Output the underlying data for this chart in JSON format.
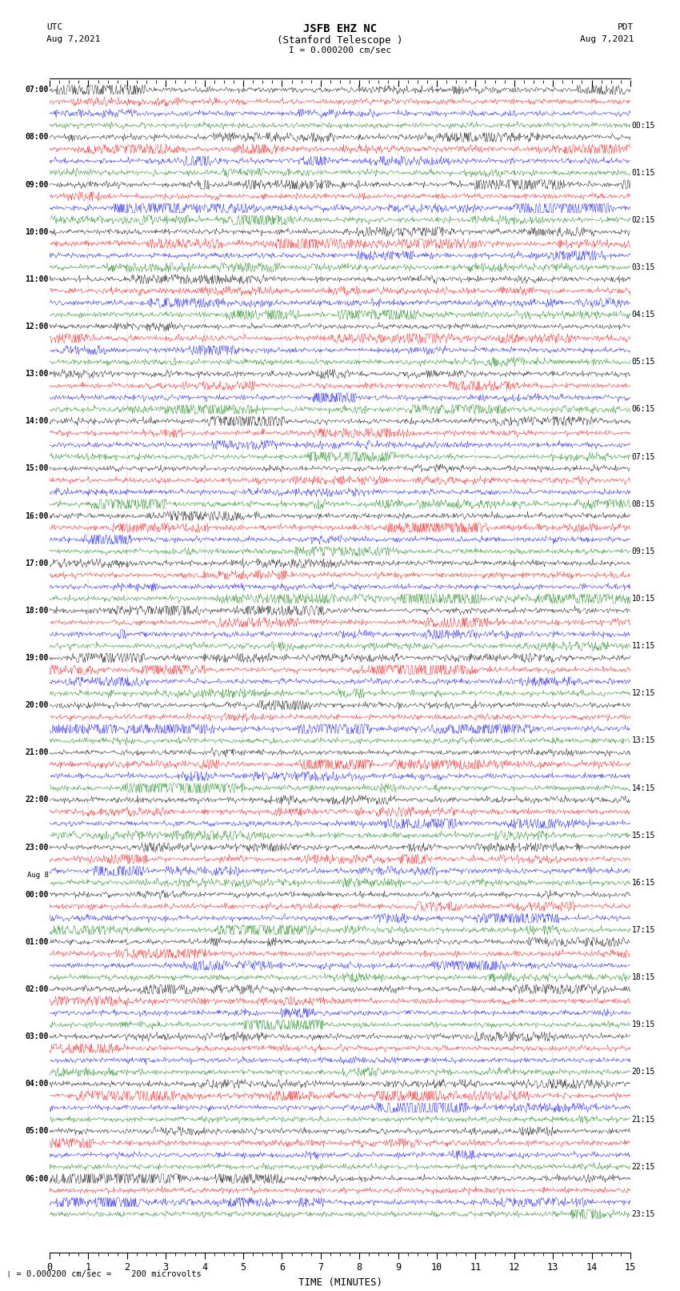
{
  "title_line1": "JSFB EHZ NC",
  "title_line2": "(Stanford Telescope )",
  "title_line3": "I = 0.000200 cm/sec",
  "left_header_line1": "UTC",
  "left_header_line2": "Aug 7,2021",
  "right_header_line1": "PDT",
  "right_header_line2": "Aug 7,2021",
  "xlabel": "TIME (MINUTES)",
  "footer": "❘ = 0.000200 cm/sec =    200 microvolts",
  "bg_color": "#ffffff",
  "trace_colors": [
    "black",
    "red",
    "blue",
    "green"
  ],
  "num_rows": 24,
  "traces_per_row": 4,
  "minutes_per_row": 15,
  "left_labels": [
    "07:00",
    "08:00",
    "09:00",
    "10:00",
    "11:00",
    "12:00",
    "13:00",
    "14:00",
    "15:00",
    "16:00",
    "17:00",
    "18:00",
    "19:00",
    "20:00",
    "21:00",
    "22:00",
    "23:00",
    "00:00",
    "01:00",
    "02:00",
    "03:00",
    "04:00",
    "05:00",
    "06:00"
  ],
  "right_labels": [
    "00:15",
    "01:15",
    "02:15",
    "03:15",
    "04:15",
    "05:15",
    "06:15",
    "07:15",
    "08:15",
    "09:15",
    "10:15",
    "11:15",
    "12:15",
    "13:15",
    "14:15",
    "15:15",
    "16:15",
    "17:15",
    "18:15",
    "19:15",
    "20:15",
    "21:15",
    "22:15",
    "23:15"
  ],
  "aug8_row": 17,
  "noise_seed": 42,
  "amplitude_base": 0.28
}
